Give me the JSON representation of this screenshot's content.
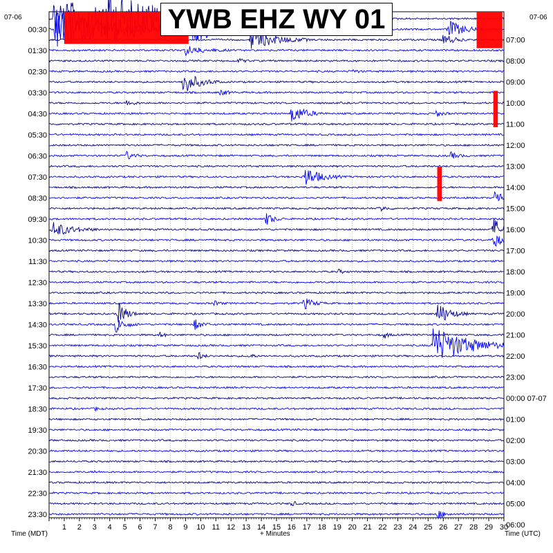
{
  "chart_data": {
    "type": "helicorder",
    "title": "YWB EHZ WY 01",
    "left_date": "07-06",
    "right_date": "07-06",
    "xlabel": "+ Minutes",
    "left_axis_label": "Time (MDT)",
    "right_axis_label": "Time (UTC)",
    "x_ticks": [
      1,
      2,
      3,
      4,
      5,
      6,
      7,
      8,
      9,
      10,
      11,
      12,
      13,
      14,
      15,
      16,
      17,
      18,
      19,
      20,
      21,
      22,
      23,
      24,
      25,
      26,
      27,
      28,
      29,
      30
    ],
    "xlim": [
      0,
      30
    ],
    "row_count": 48,
    "row_minutes": 30,
    "left_labels": [
      "00:30",
      "01:30",
      "02:30",
      "03:30",
      "04:30",
      "05:30",
      "06:30",
      "07:30",
      "08:30",
      "09:30",
      "10:30",
      "11:30",
      "12:30",
      "13:30",
      "14:30",
      "15:30",
      "16:30",
      "17:30",
      "18:30",
      "19:30",
      "20:30",
      "21:30",
      "22:30",
      "23:30"
    ],
    "right_labels": [
      "07:00",
      "08:00",
      "09:00",
      "10:00",
      "11:00",
      "12:00",
      "13:00",
      "14:00",
      "15:00",
      "16:00",
      "17:00",
      "18:00",
      "19:00",
      "20:00",
      "21:00",
      "22:00",
      "23:00",
      "00:00 07-07",
      "01:00",
      "02:00",
      "03:00",
      "04:00",
      "05:00",
      "06:00"
    ],
    "trace_colors": [
      "#00008b",
      "#0000ff"
    ],
    "clip_color": "#ff0000",
    "clipped_regions": [
      {
        "row_start": 0,
        "row_end": 2.4,
        "min_start": 1.0,
        "min_end": 9.2
      },
      {
        "row_start": 0,
        "row_end": 2.8,
        "min_start": 28.2,
        "min_end": 29.9
      },
      {
        "row_start": 7.5,
        "row_end": 10.3,
        "min_start": 29.3,
        "min_end": 29.6
      },
      {
        "row_start": 14.7,
        "row_end": 17.3,
        "min_start": 25.6,
        "min_end": 25.9
      }
    ],
    "events": [
      {
        "row": 0,
        "minute": 0.3,
        "amp": 30,
        "dur": 12
      },
      {
        "row": 0,
        "minute": 3.5,
        "amp": 26,
        "dur": 15
      },
      {
        "row": 1,
        "minute": 0.4,
        "amp": 30,
        "dur": 9
      },
      {
        "row": 1,
        "minute": 9.5,
        "amp": 18,
        "dur": 6
      },
      {
        "row": 1,
        "minute": 26.3,
        "amp": 14,
        "dur": 2.5
      },
      {
        "row": 2,
        "minute": 13.3,
        "amp": 16,
        "dur": 4
      },
      {
        "row": 2,
        "minute": 26.0,
        "amp": 10,
        "dur": 1.5
      },
      {
        "row": 3,
        "minute": 9.0,
        "amp": 7,
        "dur": 3
      },
      {
        "row": 4,
        "minute": 12.5,
        "amp": 4,
        "dur": 0.8
      },
      {
        "row": 5,
        "minute": 20.0,
        "amp": 3,
        "dur": 0.8
      },
      {
        "row": 6,
        "minute": 8.8,
        "amp": 18,
        "dur": 2.5
      },
      {
        "row": 7,
        "minute": 11.3,
        "amp": 5,
        "dur": 1
      },
      {
        "row": 8,
        "minute": 5.1,
        "amp": 6,
        "dur": 1
      },
      {
        "row": 9,
        "minute": 16.0,
        "amp": 14,
        "dur": 2.2
      },
      {
        "row": 9,
        "minute": 25.5,
        "amp": 5,
        "dur": 1
      },
      {
        "row": 13,
        "minute": 5.1,
        "amp": 6,
        "dur": 1.2
      },
      {
        "row": 13,
        "minute": 26.5,
        "amp": 5,
        "dur": 1.2
      },
      {
        "row": 15,
        "minute": 16.8,
        "amp": 16,
        "dur": 2.5
      },
      {
        "row": 17,
        "minute": 29.4,
        "amp": 12,
        "dur": 1.5
      },
      {
        "row": 18,
        "minute": 21.8,
        "amp": 5,
        "dur": 1
      },
      {
        "row": 19,
        "minute": 14.3,
        "amp": 10,
        "dur": 1.2
      },
      {
        "row": 20,
        "minute": 0.2,
        "amp": 12,
        "dur": 3
      },
      {
        "row": 20,
        "minute": 29.3,
        "amp": 18,
        "dur": 1.5
      },
      {
        "row": 21,
        "minute": 29.3,
        "amp": 15,
        "dur": 1.2
      },
      {
        "row": 24,
        "minute": 19.1,
        "amp": 3,
        "dur": 0.8
      },
      {
        "row": 27,
        "minute": 10.8,
        "amp": 4,
        "dur": 1
      },
      {
        "row": 27,
        "minute": 16.8,
        "amp": 9,
        "dur": 1.5
      },
      {
        "row": 28,
        "minute": 4.5,
        "amp": 18,
        "dur": 1.5
      },
      {
        "row": 28,
        "minute": 25.6,
        "amp": 18,
        "dur": 2
      },
      {
        "row": 29,
        "minute": 4.4,
        "amp": 12,
        "dur": 1.5
      },
      {
        "row": 29,
        "minute": 9.6,
        "amp": 8,
        "dur": 1.2
      },
      {
        "row": 30,
        "minute": 7.3,
        "amp": 6,
        "dur": 0.6
      },
      {
        "row": 30,
        "minute": 22.1,
        "amp": 6,
        "dur": 0.6
      },
      {
        "row": 31,
        "minute": 25.3,
        "amp": 28,
        "dur": 6
      },
      {
        "row": 32,
        "minute": 9.8,
        "amp": 7,
        "dur": 0.8
      },
      {
        "row": 32,
        "minute": 13.2,
        "amp": 5,
        "dur": 0.6
      },
      {
        "row": 37,
        "minute": 3.0,
        "amp": 3,
        "dur": 0.6
      },
      {
        "row": 43,
        "minute": 3.0,
        "amp": 2,
        "dur": 0.5
      },
      {
        "row": 46,
        "minute": 16.0,
        "amp": 5,
        "dur": 0.6
      },
      {
        "row": 47,
        "minute": 25.6,
        "amp": 7,
        "dur": 1.2
      }
    ]
  }
}
